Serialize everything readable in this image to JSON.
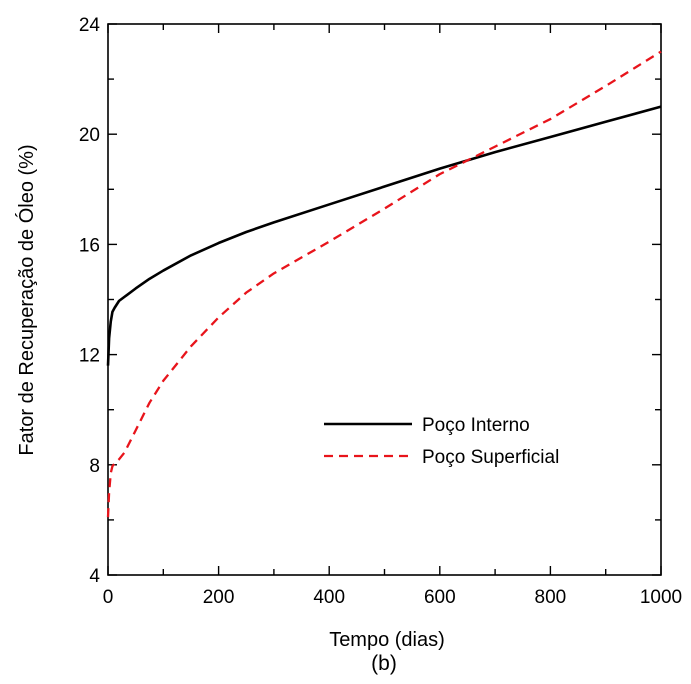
{
  "chart_data": {
    "type": "line",
    "xlabel": "Tempo (dias)",
    "ylabel": "Fator de Recuperação de Óleo (%)",
    "caption": "(b)",
    "xlim": [
      0,
      1000
    ],
    "ylim": [
      4,
      24
    ],
    "xticks": [
      0,
      200,
      400,
      600,
      800,
      1000
    ],
    "yticks": [
      4,
      8,
      12,
      16,
      20,
      24
    ],
    "grid": false,
    "legend_position": "center-right",
    "series": [
      {
        "name": "Poço Interno",
        "color": "#000000",
        "style": "solid",
        "x": [
          0,
          2,
          5,
          8,
          12,
          20,
          30,
          50,
          75,
          100,
          150,
          200,
          250,
          300,
          400,
          500,
          600,
          700,
          800,
          900,
          1000
        ],
        "y": [
          11.6,
          12.6,
          13.2,
          13.55,
          13.7,
          13.95,
          14.1,
          14.4,
          14.75,
          15.05,
          15.6,
          16.05,
          16.45,
          16.8,
          17.45,
          18.1,
          18.75,
          19.35,
          19.9,
          20.45,
          21.0
        ]
      },
      {
        "name": "Poço Superficial",
        "color": "#e8141b",
        "style": "dashed",
        "x": [
          0,
          2,
          5,
          8,
          12,
          20,
          30,
          50,
          75,
          100,
          150,
          200,
          250,
          300,
          400,
          500,
          600,
          700,
          800,
          900,
          1000
        ],
        "y": [
          6.1,
          7.0,
          7.7,
          7.95,
          8.05,
          8.2,
          8.45,
          9.25,
          10.25,
          11.05,
          12.3,
          13.35,
          14.25,
          14.95,
          16.1,
          17.3,
          18.55,
          19.55,
          20.55,
          21.75,
          23.0
        ]
      }
    ]
  }
}
